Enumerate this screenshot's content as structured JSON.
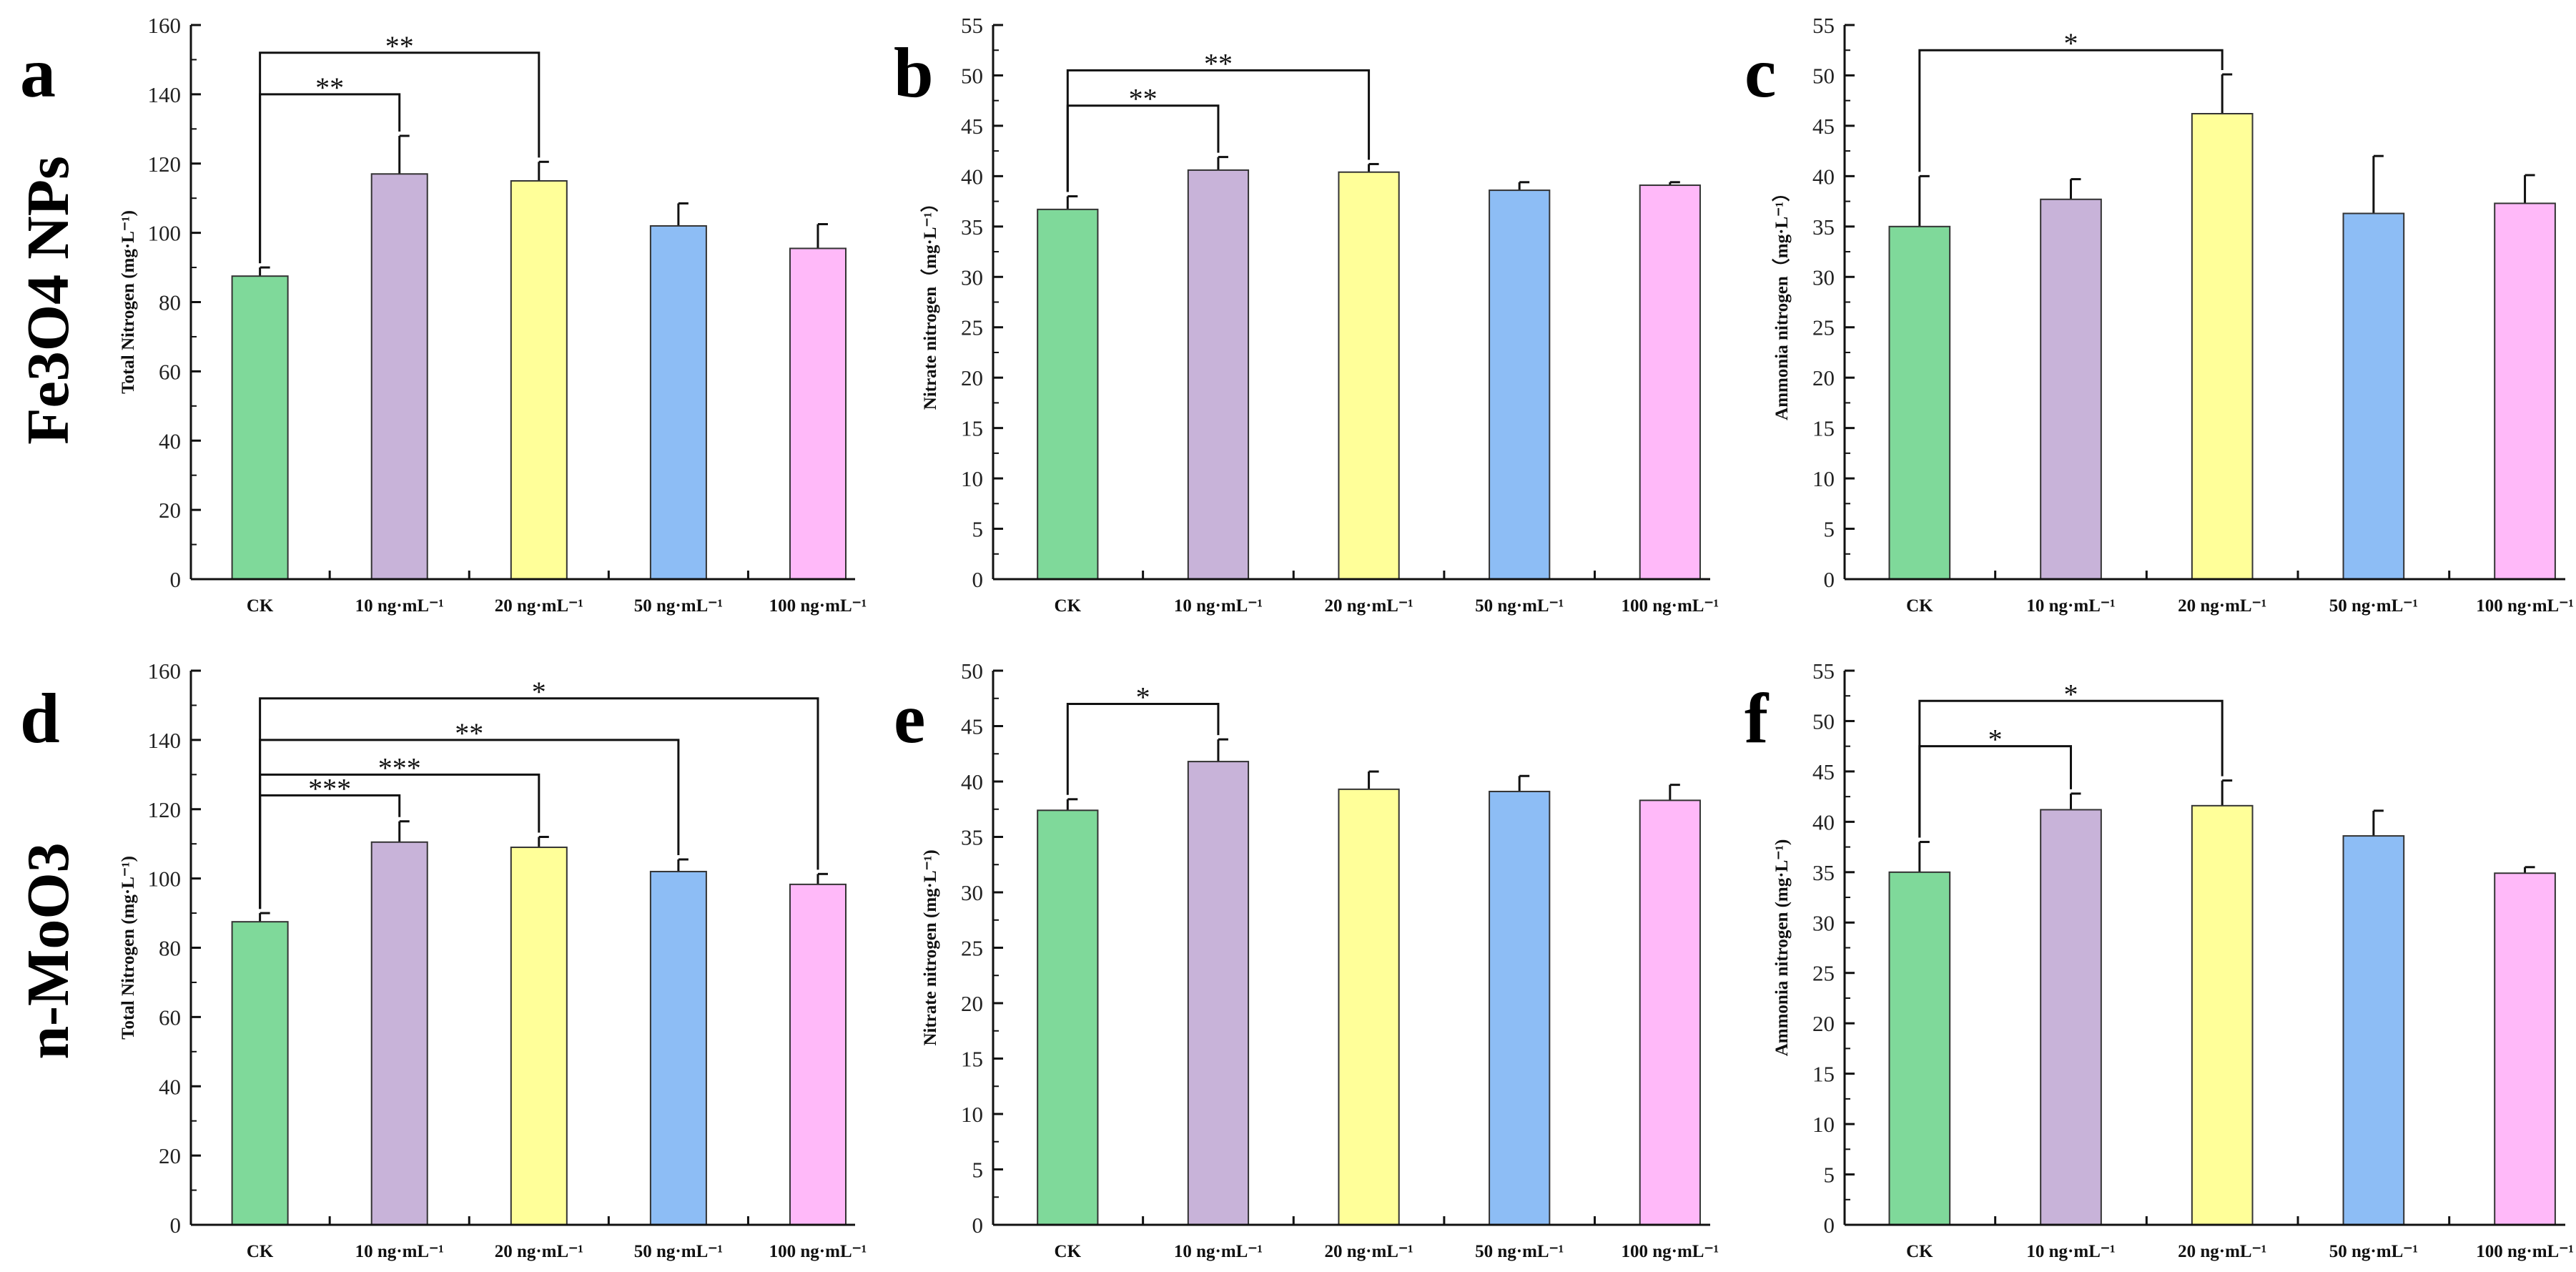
{
  "row_labels": [
    "Fe3O4 NPs",
    "n-MoO3"
  ],
  "colors": [
    "#7fd99a",
    "#c8b3d9",
    "#ffff99",
    "#8dbdf5",
    "#ffb9f9"
  ],
  "chart_data": [
    {
      "type": "bar",
      "letter": "a",
      "ylabel": "Total Nitrogen (mg·L⁻¹)",
      "ylim": [
        0,
        160
      ],
      "ytick_step": 20,
      "categories": [
        "CK",
        "10 ng·mL⁻¹",
        "20 ng·mL⁻¹",
        "50 ng·mL⁻¹",
        "100 ng·mL⁻¹"
      ],
      "values": [
        87.5,
        117,
        115,
        102,
        95.5
      ],
      "errors": [
        2.5,
        11,
        5.5,
        6.5,
        7
      ],
      "annotations": [
        {
          "from": 0,
          "to": 1,
          "y": 140,
          "label": "**"
        },
        {
          "from": 0,
          "to": 2,
          "y": 152,
          "label": "**"
        }
      ]
    },
    {
      "type": "bar",
      "letter": "b",
      "ylabel": "Nitrate nitrogen（mg·L⁻¹）",
      "ylim": [
        0,
        55
      ],
      "ytick_step": 5,
      "categories": [
        "CK",
        "10 ng·mL⁻¹",
        "20 ng·mL⁻¹",
        "50 ng·mL⁻¹",
        "100 ng·mL⁻¹"
      ],
      "values": [
        36.7,
        40.6,
        40.4,
        38.6,
        39.1
      ],
      "errors": [
        1.3,
        1.3,
        0.8,
        0.8,
        0.3
      ],
      "annotations": [
        {
          "from": 0,
          "to": 1,
          "y": 47,
          "label": "**"
        },
        {
          "from": 0,
          "to": 2,
          "y": 50.5,
          "label": "**"
        }
      ]
    },
    {
      "type": "bar",
      "letter": "c",
      "ylabel": "Ammonia nitrogen（mg·L⁻¹）",
      "ylim": [
        0,
        55
      ],
      "ytick_step": 5,
      "categories": [
        "CK",
        "10 ng·mL⁻¹",
        "20 ng·mL⁻¹",
        "50 ng·mL⁻¹",
        "100 ng·mL⁻¹"
      ],
      "values": [
        35,
        37.7,
        46.2,
        36.3,
        37.3
      ],
      "errors": [
        5,
        2,
        3.9,
        5.7,
        2.8
      ],
      "annotations": [
        {
          "from": 0,
          "to": 2,
          "y": 52.5,
          "label": "*"
        }
      ]
    },
    {
      "type": "bar",
      "letter": "d",
      "ylabel": "Total Nitrogen (mg·L⁻¹)",
      "ylim": [
        0,
        160
      ],
      "ytick_step": 20,
      "categories": [
        "CK",
        "10 ng·mL⁻¹",
        "20 ng·mL⁻¹",
        "50 ng·mL⁻¹",
        "100 ng·mL⁻¹"
      ],
      "values": [
        87.5,
        110.5,
        109,
        102,
        98.3
      ],
      "errors": [
        2.5,
        6,
        3,
        3.5,
        3
      ],
      "annotations": [
        {
          "from": 0,
          "to": 1,
          "y": 124,
          "label": "***"
        },
        {
          "from": 0,
          "to": 2,
          "y": 130,
          "label": "***"
        },
        {
          "from": 0,
          "to": 3,
          "y": 140,
          "label": "**"
        },
        {
          "from": 0,
          "to": 4,
          "y": 152,
          "label": "*"
        }
      ]
    },
    {
      "type": "bar",
      "letter": "e",
      "ylabel": "Nitrate nitrogen (mg·L⁻¹)",
      "ylim": [
        0,
        50
      ],
      "ytick_step": 5,
      "categories": [
        "CK",
        "10 ng·mL⁻¹",
        "20 ng·mL⁻¹",
        "50 ng·mL⁻¹",
        "100 ng·mL⁻¹"
      ],
      "values": [
        37.4,
        41.8,
        39.3,
        39.1,
        38.3
      ],
      "errors": [
        1,
        2,
        1.6,
        1.4,
        1.4
      ],
      "annotations": [
        {
          "from": 0,
          "to": 1,
          "y": 47,
          "label": "*"
        }
      ]
    },
    {
      "type": "bar",
      "letter": "f",
      "ylabel": "Ammonia nitrogen (mg·L⁻¹)",
      "ylim": [
        0,
        55
      ],
      "ytick_step": 5,
      "categories": [
        "CK",
        "10 ng·mL⁻¹",
        "20 ng·mL⁻¹",
        "50 ng·mL⁻¹",
        "100 ng·mL⁻¹"
      ],
      "values": [
        35,
        41.2,
        41.6,
        38.6,
        34.9
      ],
      "errors": [
        3,
        1.6,
        2.5,
        2.5,
        0.6
      ],
      "annotations": [
        {
          "from": 0,
          "to": 1,
          "y": 47.5,
          "label": "*"
        },
        {
          "from": 0,
          "to": 2,
          "y": 52,
          "label": "*"
        }
      ]
    }
  ]
}
